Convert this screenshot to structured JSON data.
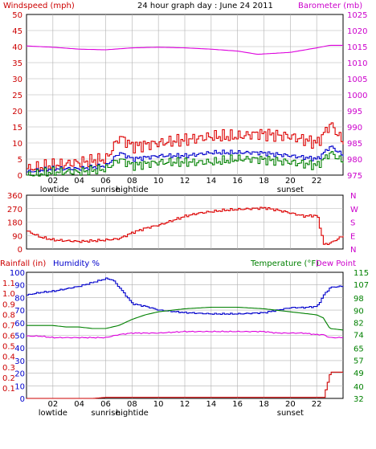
{
  "header": {
    "title": "24 hour graph day : June 24 2011",
    "windspeed_label": "Windspeed (mph)",
    "barometer_label": "Barometer (mb)"
  },
  "colors": {
    "wind_avg": "#008000",
    "wind_gust": "#dd0000",
    "wind_avg2": "#0000cc",
    "barometer": "#dd00dd",
    "direction": "#dd0000",
    "humidity": "#0000cc",
    "temperature": "#008000",
    "dewpoint": "#dd00dd",
    "rainfall": "#cc0000",
    "grid": "#b0b0b0",
    "axis_left": "#cc0000",
    "axis_right": "#cc00cc"
  },
  "x_axis": {
    "ticks": [
      "02",
      "04",
      "06",
      "08",
      "10",
      "12",
      "14",
      "16",
      "18",
      "20",
      "22"
    ],
    "events_top": [
      {
        "label": "lowtide",
        "hour": 2
      },
      {
        "label": "sunrise",
        "hour": 6
      },
      {
        "label": "hightide",
        "hour": 8
      },
      {
        "label": "sunset",
        "hour": 20
      }
    ],
    "events_bottom": [
      {
        "label": "lowtide",
        "hour": 2
      },
      {
        "label": "sunrise",
        "hour": 6
      },
      {
        "label": "hightide",
        "hour": 8
      },
      {
        "label": "sunset",
        "hour": 20
      }
    ]
  },
  "chart_data": [
    {
      "type": "line",
      "title": "24 hour graph day : June 24 2011",
      "left_axis": {
        "label": "Windspeed (mph)",
        "ticks": [
          "0",
          "5",
          "10",
          "15",
          "20",
          "25",
          "30",
          "35",
          "40",
          "45",
          "50"
        ],
        "ylim": [
          0,
          50
        ]
      },
      "right_axis": {
        "label": "Barometer (mb)",
        "ticks": [
          "975",
          "980",
          "985",
          "990",
          "995",
          "1000",
          "1005",
          "1010",
          "1015",
          "1020",
          "1025"
        ],
        "ylim": [
          975,
          1025
        ]
      },
      "x": [
        0,
        2,
        4,
        6,
        7,
        8,
        10,
        12,
        14,
        16,
        17.5,
        20,
        22,
        23,
        24
      ],
      "series": [
        {
          "key": "wind_gust",
          "values": [
            2,
            3,
            4,
            5,
            12,
            9,
            10,
            11,
            12,
            12,
            13,
            12,
            10,
            16,
            10
          ]
        },
        {
          "key": "wind_avg2",
          "values": [
            1,
            2,
            2,
            3,
            7,
            5,
            6,
            6,
            7,
            7,
            7,
            6,
            5,
            9,
            6
          ]
        },
        {
          "key": "wind_avg",
          "values": [
            0,
            1,
            1,
            2,
            5,
            3,
            4,
            4,
            4,
            5,
            5,
            4,
            3,
            7,
            4
          ]
        },
        {
          "key": "barometer",
          "values": [
            1015.2,
            1014.8,
            1014.2,
            1014.0,
            1014.3,
            1014.6,
            1014.8,
            1014.6,
            1014.2,
            1013.6,
            1012.6,
            1013.2,
            1014.6,
            1015.4,
            1015.4
          ]
        }
      ]
    },
    {
      "type": "line",
      "left_axis": {
        "ticks": [
          "360",
          "270",
          "180",
          "90",
          "0"
        ],
        "ylim": [
          0,
          360
        ]
      },
      "right_axis": {
        "ticks": [
          "N",
          "W",
          "S",
          "E",
          "N"
        ]
      },
      "x": [
        0,
        1,
        2,
        3,
        4,
        5,
        6,
        7,
        8,
        9,
        10,
        11,
        12,
        13,
        14,
        15,
        16,
        17,
        18,
        19,
        20,
        21,
        22,
        22.5,
        23,
        24
      ],
      "series": [
        {
          "key": "direction",
          "values": [
            120,
            80,
            60,
            55,
            50,
            55,
            60,
            70,
            110,
            140,
            160,
            190,
            220,
            240,
            250,
            260,
            265,
            270,
            275,
            260,
            240,
            220,
            225,
            30,
            40,
            90
          ]
        }
      ]
    },
    {
      "type": "line",
      "left_axis": {
        "rainfall_label": "Rainfall (in)",
        "humidity_label": "Humidity %",
        "rainfall_ticks": [
          "0.0",
          "0.1",
          "0.2",
          "0.3",
          "0.4",
          "0.5",
          "0.6",
          "0.7",
          "0.8",
          "0.9",
          "1.0",
          "1.1",
          "1.2"
        ],
        "humidity_ticks": [
          "0",
          "10",
          "20",
          "30",
          "40",
          "50",
          "60",
          "70",
          "80",
          "90",
          "100"
        ],
        "ylim": [
          0,
          100
        ]
      },
      "right_axis": {
        "temperature_label": "Temperature (°F)",
        "dewpoint_label": "Dew Point",
        "ticks": [
          "32",
          "40",
          "49",
          "57",
          "65",
          "74",
          "82",
          "90",
          "98",
          "107",
          "115"
        ],
        "ylim": [
          32,
          115
        ]
      },
      "x": [
        0,
        1,
        2,
        3,
        4,
        5,
        6,
        6.5,
        7,
        8,
        9,
        10,
        12,
        14,
        16,
        18,
        19,
        20,
        21,
        22,
        22.5,
        23,
        24
      ],
      "series": [
        {
          "key": "humidity",
          "values": [
            82,
            84,
            85,
            87,
            89,
            92,
            95,
            94,
            88,
            75,
            73,
            70,
            68,
            67,
            67,
            68,
            70,
            72,
            72,
            73,
            82,
            88,
            89
          ]
        },
        {
          "key": "temperature",
          "values": [
            80,
            80,
            80,
            79,
            79,
            78,
            78,
            79,
            80,
            84,
            87,
            89,
            91,
            92,
            92,
            91,
            90,
            89,
            88,
            87,
            85,
            78,
            77
          ]
        },
        {
          "key": "dewpoint",
          "values": [
            73,
            73,
            72,
            72,
            72,
            72,
            72,
            73,
            74,
            75,
            75,
            75,
            76,
            76,
            76,
            76,
            75,
            75,
            75,
            74,
            74,
            72,
            72
          ]
        },
        {
          "key": "rainfall",
          "values": [
            0,
            0,
            0,
            0,
            0,
            0,
            0.01,
            0.01,
            0.01,
            0.01,
            0.01,
            0.01,
            0.01,
            0.01,
            0.01,
            0.01,
            0.01,
            0.01,
            0.01,
            0.01,
            0.01,
            0.25,
            0.25
          ]
        }
      ]
    }
  ]
}
